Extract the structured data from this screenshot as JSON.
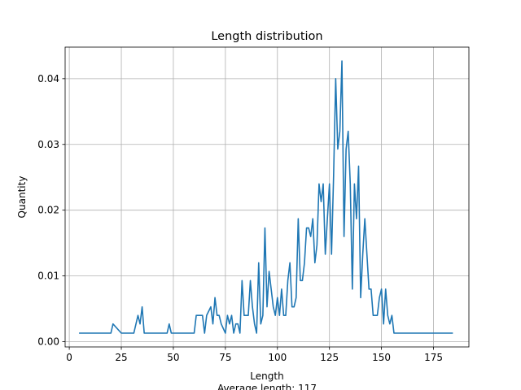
{
  "chart_data": {
    "type": "line",
    "title": "Length distribution",
    "xlabel": "Length",
    "subtitle_below_xlabel": "Average length: 117",
    "ylabel": "Quantity",
    "xlim": [
      -2,
      192
    ],
    "ylim": [
      -0.0008,
      0.0448
    ],
    "xticks": [
      0,
      25,
      50,
      75,
      100,
      125,
      150,
      175
    ],
    "yticks": [
      0.0,
      0.01,
      0.02,
      0.03,
      0.04
    ],
    "ytick_labels": [
      "0.00",
      "0.01",
      "0.02",
      "0.03",
      "0.04"
    ],
    "grid": true,
    "line_color": "#1f77b4",
    "series": [
      {
        "x": [
          5,
          20,
          21,
          25,
          31,
          33,
          34,
          35,
          36,
          47,
          48,
          49,
          60,
          61,
          64,
          65,
          66,
          68,
          69,
          70,
          71,
          72,
          73,
          75,
          76,
          77,
          78,
          79,
          80,
          81,
          82,
          83,
          84,
          85,
          86,
          87,
          88,
          89,
          90,
          91,
          92,
          93,
          94,
          95,
          96,
          97,
          98,
          99,
          100,
          101,
          102,
          103,
          104,
          105,
          106,
          107,
          108,
          109,
          110,
          111,
          112,
          113,
          114,
          115,
          116,
          117,
          118,
          119,
          120,
          121,
          122,
          123,
          124,
          125,
          126,
          127,
          128,
          129,
          130,
          131,
          132,
          133,
          134,
          135,
          136,
          137,
          138,
          139,
          140,
          141,
          142,
          143,
          144,
          145,
          146,
          147,
          148,
          149,
          150,
          151,
          152,
          153,
          154,
          155,
          156,
          157,
          158,
          184
        ],
        "y": [
          0.0013,
          0.0013,
          0.0027,
          0.0013,
          0.0013,
          0.004,
          0.0027,
          0.0053,
          0.0013,
          0.0013,
          0.0027,
          0.0013,
          0.0013,
          0.004,
          0.004,
          0.0013,
          0.004,
          0.0053,
          0.0027,
          0.0067,
          0.004,
          0.004,
          0.0027,
          0.0013,
          0.004,
          0.0027,
          0.004,
          0.0013,
          0.0027,
          0.0027,
          0.0013,
          0.0093,
          0.004,
          0.004,
          0.004,
          0.0093,
          0.0053,
          0.0027,
          0.0013,
          0.012,
          0.0027,
          0.004,
          0.0173,
          0.0053,
          0.0107,
          0.008,
          0.0053,
          0.004,
          0.0067,
          0.004,
          0.008,
          0.004,
          0.004,
          0.0093,
          0.012,
          0.0053,
          0.0053,
          0.0067,
          0.0187,
          0.0093,
          0.0093,
          0.012,
          0.0173,
          0.0173,
          0.016,
          0.0187,
          0.012,
          0.0147,
          0.024,
          0.0213,
          0.024,
          0.0133,
          0.0187,
          0.024,
          0.0133,
          0.0253,
          0.04,
          0.0293,
          0.032,
          0.0427,
          0.016,
          0.0293,
          0.032,
          0.024,
          0.008,
          0.024,
          0.0187,
          0.0267,
          0.0067,
          0.0133,
          0.0187,
          0.0133,
          0.008,
          0.008,
          0.004,
          0.004,
          0.004,
          0.0067,
          0.008,
          0.0027,
          0.008,
          0.004,
          0.0027,
          0.004,
          0.0013,
          0.0013,
          0.0013,
          0.0013
        ]
      }
    ]
  }
}
